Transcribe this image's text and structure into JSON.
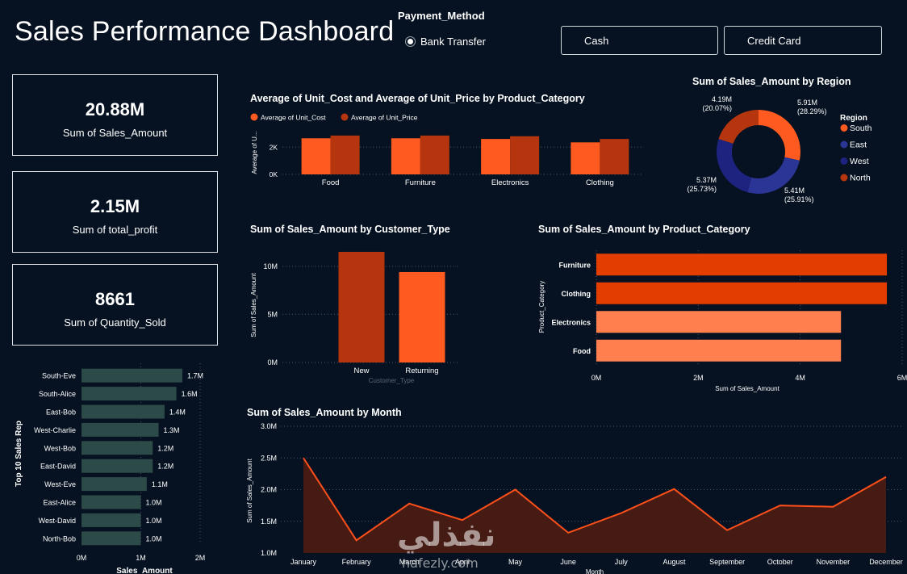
{
  "header": {
    "title": "Sales Performance Dashboard",
    "slicer_title": "Payment_Method",
    "radio_option": "Bank Transfer",
    "buttons": [
      "Cash",
      "Credit Card"
    ]
  },
  "cards": [
    {
      "value": "20.88M",
      "label": "Sum of Sales_Amount"
    },
    {
      "value": "2.15M",
      "label": "Sum of total_profit"
    },
    {
      "value": "8661",
      "label": "Sum of Quantity_Sold"
    }
  ],
  "colors": {
    "background": "#061221",
    "orange": "#ff5a1f",
    "dark_orange": "#b5360e",
    "bright_orange": "#e33d00",
    "light_orange": "#ff7f4f",
    "navy": "#1d237e",
    "blue": "#2b3596",
    "rep_bar": "#2c4a48",
    "area_fill": "#4a1c14"
  },
  "chart_data": [
    {
      "id": "unit-cost-price",
      "type": "bar",
      "title": "Average of Unit_Cost and Average of Unit_Price by Product_Category",
      "ylabel": "Average of U...",
      "xlabel": "",
      "categories": [
        "Food",
        "Furniture",
        "Electronics",
        "Clothing"
      ],
      "series": [
        {
          "name": "Average of Unit_Cost",
          "values": [
            2650,
            2650,
            2600,
            2350
          ],
          "color": "#ff5a1f"
        },
        {
          "name": "Average of Unit_Price",
          "values": [
            2850,
            2850,
            2800,
            2600
          ],
          "color": "#b5360e"
        }
      ],
      "yticks": [
        "0K",
        "2K"
      ],
      "ylim": [
        0,
        3200
      ],
      "legend": "top-left"
    },
    {
      "id": "sales-by-region",
      "type": "pie",
      "title": "Sum of Sales_Amount by Region",
      "legend_title": "Region",
      "slices": [
        {
          "name": "South",
          "value": 5.91,
          "label": "5.91M",
          "pct": "(28.29%)",
          "color": "#ff5a1f"
        },
        {
          "name": "East",
          "value": 5.41,
          "label": "5.41M",
          "pct": "(25.91%)",
          "color": "#2b3596"
        },
        {
          "name": "West",
          "value": 5.37,
          "label": "5.37M",
          "pct": "(25.73%)",
          "color": "#1d237e"
        },
        {
          "name": "North",
          "value": 4.19,
          "label": "4.19M",
          "pct": "(20.07%)",
          "color": "#b5360e"
        }
      ],
      "legend": "right"
    },
    {
      "id": "sales-by-customer-type",
      "type": "bar",
      "title": "Sum of Sales_Amount by Customer_Type",
      "xlabel": "Customer_Type",
      "ylabel": "Sum of Sales_Amount",
      "categories": [
        "New",
        "Returning"
      ],
      "values": [
        11.5,
        9.4
      ],
      "colors": [
        "#b5360e",
        "#ff5a1f"
      ],
      "yticks": [
        "0M",
        "5M",
        "10M"
      ],
      "ylim": [
        0,
        12
      ]
    },
    {
      "id": "sales-by-product-category",
      "type": "bar",
      "orientation": "horizontal",
      "title": "Sum of Sales_Amount by Product_Category",
      "xlabel": "Sum of Sales_Amount",
      "ylabel": "Product_Category",
      "categories": [
        "Furniture",
        "Clothing",
        "Electronics",
        "Food"
      ],
      "values": [
        5.7,
        5.7,
        4.8,
        4.8
      ],
      "colors": [
        "#e33d00",
        "#e33d00",
        "#ff7f4f",
        "#ff7f4f"
      ],
      "xticks": [
        "0M",
        "2M",
        "4M",
        "6M"
      ],
      "xlim": [
        0,
        6
      ]
    },
    {
      "id": "top-sales-reps",
      "type": "bar",
      "orientation": "horizontal",
      "title": "",
      "xlabel": "Sales_Amount",
      "ylabel": "Top 10 Sales Rep",
      "categories": [
        "South-Eve",
        "South-Alice",
        "East-Bob",
        "West-Charlie",
        "West-Bob",
        "East-David",
        "West-Eve",
        "East-Alice",
        "West-David",
        "North-Bob"
      ],
      "values": [
        1.7,
        1.6,
        1.4,
        1.3,
        1.2,
        1.2,
        1.1,
        1.0,
        1.0,
        1.0
      ],
      "labels": [
        "1.7M",
        "1.6M",
        "1.4M",
        "1.3M",
        "1.2M",
        "1.2M",
        "1.1M",
        "1.0M",
        "1.0M",
        "1.0M"
      ],
      "xticks": [
        "0M",
        "1M",
        "2M"
      ],
      "xlim": [
        0,
        2
      ]
    },
    {
      "id": "sales-by-month",
      "type": "area",
      "title": "Sum of Sales_Amount by Month",
      "xlabel": "Month",
      "ylabel": "Sum of Sales_Amount",
      "categories": [
        "January",
        "February",
        "March",
        "April",
        "May",
        "June",
        "July",
        "August",
        "September",
        "October",
        "November",
        "December"
      ],
      "values": [
        2.5,
        1.2,
        1.78,
        1.52,
        2.0,
        1.32,
        1.63,
        2.01,
        1.36,
        1.75,
        1.73,
        2.2
      ],
      "yticks": [
        "1.0M",
        "1.5M",
        "2.0M",
        "2.5M",
        "3.0M"
      ],
      "ylim": [
        1.0,
        3.0
      ]
    }
  ],
  "watermark": {
    "main": "نفذلي",
    "sub": "nafezly.com"
  }
}
